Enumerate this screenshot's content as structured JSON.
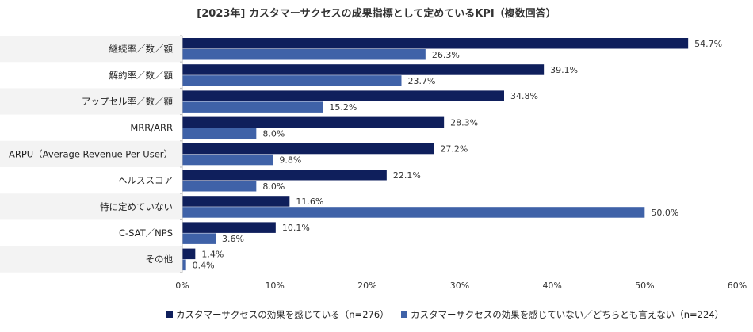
{
  "chart_data": {
    "type": "bar",
    "orientation": "horizontal",
    "title": "[2023年] カスタマーサクセスの成果指標として定めているKPI（複数回答）",
    "categories": [
      "継続率／数／額",
      "解約率／数／額",
      "アップセル率／数／額",
      "MRR/ARR",
      "ARPU（Average Revenue Per User）",
      "ヘルススコア",
      "特に定めていない",
      "C-SAT／NPS",
      "その他"
    ],
    "series": [
      {
        "name": "カスタマーサクセスの効果を感じている（n=276）",
        "color": "#0f1f5c",
        "values": [
          54.7,
          39.1,
          34.8,
          28.3,
          27.2,
          22.1,
          11.6,
          10.1,
          1.4
        ],
        "labels": [
          "54.7%",
          "39.1%",
          "34.8%",
          "28.3%",
          "27.2%",
          "22.1%",
          "11.6%",
          "10.1%",
          "1.4%"
        ]
      },
      {
        "name": "カスタマーサクセスの効果を感じていない／どちらとも言えない（n=224）",
        "color": "#3f62a8",
        "values": [
          26.3,
          23.7,
          15.2,
          8.0,
          9.8,
          8.0,
          50.0,
          3.6,
          0.4
        ],
        "labels": [
          "26.3%",
          "23.7%",
          "15.2%",
          "8.0%",
          "9.8%",
          "8.0%",
          "50.0%",
          "3.6%",
          "0.4%"
        ]
      }
    ],
    "xlim": [
      0,
      60
    ],
    "xticks": [
      0,
      10,
      20,
      30,
      40,
      50,
      60
    ],
    "xtick_labels": [
      "0%",
      "10%",
      "20%",
      "30%",
      "40%",
      "50%",
      "60%"
    ],
    "grid": false,
    "legend_position": "bottom",
    "xlabel": "",
    "ylabel": ""
  }
}
